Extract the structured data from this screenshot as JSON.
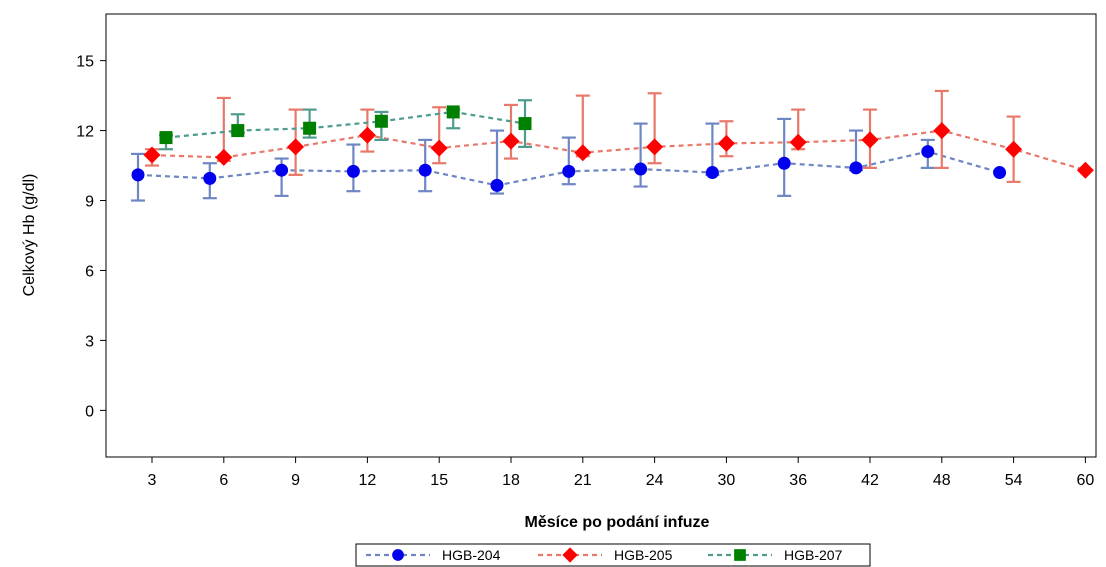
{
  "chart_data": {
    "type": "line",
    "xlabel": "Měsíce po podání infuze",
    "ylabel": "Celkový Hb (g/dl)",
    "categories": [
      "3",
      "6",
      "9",
      "12",
      "15",
      "18",
      "21",
      "24",
      "30",
      "36",
      "42",
      "48",
      "54",
      "60"
    ],
    "ylim": [
      -2,
      17
    ],
    "yticks": [
      "0",
      "3",
      "6",
      "9",
      "12",
      "15"
    ],
    "grid": false,
    "legend_position": "bottom",
    "series": [
      {
        "name": "HGB-204",
        "marker": "circle",
        "color": "#0000ee",
        "line_color": "#6f86c4",
        "points": [
          {
            "x": "3",
            "y": 10.1,
            "lo": 9.0,
            "hi": 11.0
          },
          {
            "x": "6",
            "y": 9.95,
            "lo": 9.1,
            "hi": 10.6
          },
          {
            "x": "9",
            "y": 10.3,
            "lo": 9.2,
            "hi": 10.8
          },
          {
            "x": "12",
            "y": 10.25,
            "lo": 9.4,
            "hi": 11.4
          },
          {
            "x": "15",
            "y": 10.3,
            "lo": 9.4,
            "hi": 11.6
          },
          {
            "x": "18",
            "y": 9.65,
            "lo": 9.3,
            "hi": 12.0
          },
          {
            "x": "21",
            "y": 10.25,
            "lo": 9.7,
            "hi": 11.7
          },
          {
            "x": "24",
            "y": 10.35,
            "lo": 9.6,
            "hi": 12.3
          },
          {
            "x": "30",
            "y": 10.2,
            "lo": 10.1,
            "hi": 12.3
          },
          {
            "x": "36",
            "y": 10.6,
            "lo": 9.2,
            "hi": 12.5
          },
          {
            "x": "42",
            "y": 10.4,
            "lo": 10.3,
            "hi": 12.0
          },
          {
            "x": "48",
            "y": 11.1,
            "lo": 10.4,
            "hi": 11.6
          },
          {
            "x": "54",
            "y": 10.2,
            "lo": null,
            "hi": null
          }
        ]
      },
      {
        "name": "HGB-205",
        "marker": "diamond",
        "color": "#ff0000",
        "line_color": "#e8786a",
        "points": [
          {
            "x": "3",
            "y": 10.95,
            "lo": 10.5,
            "hi": 11.2
          },
          {
            "x": "6",
            "y": 10.85,
            "lo": 10.7,
            "hi": 13.4
          },
          {
            "x": "9",
            "y": 11.3,
            "lo": 10.1,
            "hi": 12.9
          },
          {
            "x": "12",
            "y": 11.8,
            "lo": 11.1,
            "hi": 12.9
          },
          {
            "x": "15",
            "y": 11.25,
            "lo": 10.6,
            "hi": 13.0
          },
          {
            "x": "18",
            "y": 11.55,
            "lo": 10.8,
            "hi": 13.1
          },
          {
            "x": "21",
            "y": 11.05,
            "lo": 10.9,
            "hi": 13.5
          },
          {
            "x": "24",
            "y": 11.3,
            "lo": 10.6,
            "hi": 13.6
          },
          {
            "x": "30",
            "y": 11.45,
            "lo": 10.9,
            "hi": 12.4
          },
          {
            "x": "36",
            "y": 11.5,
            "lo": 11.2,
            "hi": 12.9
          },
          {
            "x": "42",
            "y": 11.6,
            "lo": 10.4,
            "hi": 12.9
          },
          {
            "x": "48",
            "y": 12.0,
            "lo": 10.4,
            "hi": 13.7
          },
          {
            "x": "54",
            "y": 11.2,
            "lo": 9.8,
            "hi": 12.6
          },
          {
            "x": "60",
            "y": 10.3,
            "lo": null,
            "hi": null
          }
        ]
      },
      {
        "name": "HGB-207",
        "marker": "square",
        "color": "#008000",
        "line_color": "#4f9c8f",
        "points": [
          {
            "x": "3",
            "y": 11.7,
            "lo": 11.2,
            "hi": 11.8
          },
          {
            "x": "6",
            "y": 12.0,
            "lo": 11.9,
            "hi": 12.7
          },
          {
            "x": "9",
            "y": 12.1,
            "lo": 11.7,
            "hi": 12.9
          },
          {
            "x": "12",
            "y": 12.4,
            "lo": 11.6,
            "hi": 12.8
          },
          {
            "x": "15",
            "y": 12.8,
            "lo": 12.1,
            "hi": 12.9
          },
          {
            "x": "18",
            "y": 12.3,
            "lo": 11.3,
            "hi": 13.3
          }
        ]
      }
    ]
  }
}
